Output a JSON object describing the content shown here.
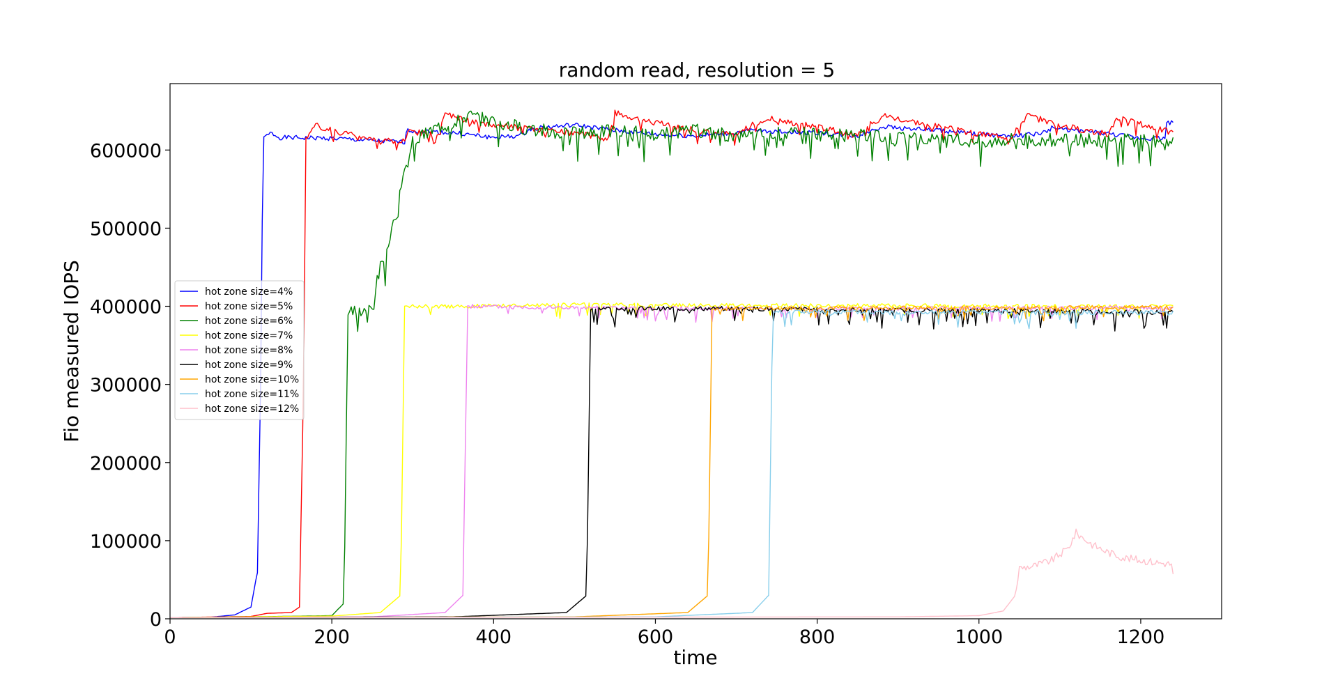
{
  "chart_data": {
    "type": "line",
    "title": "random read, resolution = 5",
    "xlabel": "time",
    "ylabel": "Fio measured IOPS",
    "xlim": [
      0,
      1300
    ],
    "ylim": [
      0,
      685000
    ],
    "x_ticks": [
      0,
      200,
      400,
      600,
      800,
      1000,
      1200
    ],
    "y_ticks": [
      0,
      100000,
      200000,
      300000,
      400000,
      500000,
      600000
    ],
    "x_tick_labels": [
      "0",
      "200",
      "400",
      "600",
      "800",
      "1000",
      "1200"
    ],
    "y_tick_labels": [
      "0",
      "100000",
      "200000",
      "300000",
      "400000",
      "500000",
      "600000"
    ],
    "grid": false,
    "legend_position": "center-left",
    "series": [
      {
        "name": "hot zone size=4%",
        "color": "#0000ff",
        "points": [
          [
            0,
            1500
          ],
          [
            50,
            2000
          ],
          [
            80,
            5000
          ],
          [
            100,
            15000
          ],
          [
            108,
            60000
          ],
          [
            112,
            300000
          ],
          [
            115,
            615000
          ],
          [
            125,
            622000
          ],
          [
            135,
            616000
          ],
          [
            200,
            615000
          ],
          [
            250,
            612000
          ],
          [
            290,
            610000
          ],
          [
            292,
            625000
          ],
          [
            350,
            622000
          ],
          [
            400,
            616000
          ],
          [
            430,
            618000
          ],
          [
            450,
            628000
          ],
          [
            500,
            632000
          ],
          [
            550,
            625000
          ],
          [
            600,
            620000
          ],
          [
            650,
            618000
          ],
          [
            700,
            622000
          ],
          [
            720,
            625000
          ],
          [
            800,
            622000
          ],
          [
            850,
            618000
          ],
          [
            880,
            630000
          ],
          [
            950,
            625000
          ],
          [
            1000,
            620000
          ],
          [
            1050,
            618000
          ],
          [
            1080,
            622000
          ],
          [
            1090,
            628000
          ],
          [
            1150,
            622000
          ],
          [
            1200,
            615000
          ],
          [
            1230,
            615000
          ],
          [
            1232,
            635000
          ],
          [
            1240,
            635000
          ]
        ],
        "noise": 3000,
        "seed": 1
      },
      {
        "name": "hot zone size=5%",
        "color": "#ff0000",
        "points": [
          [
            0,
            1500
          ],
          [
            100,
            3000
          ],
          [
            120,
            7000
          ],
          [
            150,
            8000
          ],
          [
            160,
            15000
          ],
          [
            165,
            300000
          ],
          [
            168,
            615000
          ],
          [
            180,
            632000
          ],
          [
            200,
            625000
          ],
          [
            250,
            615000
          ],
          [
            290,
            610000
          ],
          [
            295,
            625000
          ],
          [
            330,
            618000
          ],
          [
            340,
            645000
          ],
          [
            380,
            635000
          ],
          [
            420,
            630000
          ],
          [
            460,
            625000
          ],
          [
            500,
            622000
          ],
          [
            540,
            615000
          ],
          [
            550,
            648000
          ],
          [
            600,
            635000
          ],
          [
            650,
            625000
          ],
          [
            700,
            620000
          ],
          [
            720,
            632000
          ],
          [
            740,
            640000
          ],
          [
            800,
            630000
          ],
          [
            850,
            618000
          ],
          [
            880,
            645000
          ],
          [
            950,
            630000
          ],
          [
            1000,
            620000
          ],
          [
            1040,
            618000
          ],
          [
            1060,
            645000
          ],
          [
            1100,
            632000
          ],
          [
            1160,
            620000
          ],
          [
            1170,
            642000
          ],
          [
            1240,
            622000
          ]
        ],
        "noise": 4000,
        "dips": 9000,
        "seed": 2
      },
      {
        "name": "hot zone size=6%",
        "color": "#008000",
        "points": [
          [
            0,
            1500
          ],
          [
            100,
            2500
          ],
          [
            200,
            4000
          ],
          [
            215,
            20000
          ],
          [
            220,
            390000
          ],
          [
            240,
            395000
          ],
          [
            250,
            405000
          ],
          [
            260,
            450000
          ],
          [
            270,
            475000
          ],
          [
            280,
            520000
          ],
          [
            290,
            570000
          ],
          [
            300,
            610000
          ],
          [
            330,
            630000
          ],
          [
            370,
            645000
          ],
          [
            420,
            632000
          ],
          [
            480,
            622000
          ],
          [
            550,
            625000
          ],
          [
            600,
            620000
          ],
          [
            650,
            625000
          ],
          [
            700,
            618000
          ],
          [
            750,
            622000
          ],
          [
            800,
            620000
          ],
          [
            850,
            618000
          ],
          [
            900,
            615000
          ],
          [
            950,
            612000
          ],
          [
            1000,
            612000
          ],
          [
            1050,
            615000
          ],
          [
            1100,
            612000
          ],
          [
            1150,
            612000
          ],
          [
            1200,
            612000
          ],
          [
            1240,
            608000
          ]
        ],
        "noise": 9000,
        "dips": 20000,
        "seed": 3
      },
      {
        "name": "hot zone size=7%",
        "color": "#ffff00",
        "points": [
          [
            0,
            1500
          ],
          [
            200,
            3500
          ],
          [
            260,
            8000
          ],
          [
            285,
            30000
          ],
          [
            290,
            400000
          ],
          [
            350,
            400000
          ],
          [
            500,
            402000
          ],
          [
            700,
            401000
          ],
          [
            900,
            401000
          ],
          [
            1100,
            400000
          ],
          [
            1240,
            400000
          ]
        ],
        "noise": 2500,
        "dips": 10000,
        "seed": 4
      },
      {
        "name": "hot zone size=8%",
        "color": "#ee82ee",
        "points": [
          [
            0,
            1500
          ],
          [
            250,
            2500
          ],
          [
            340,
            8000
          ],
          [
            362,
            30000
          ],
          [
            368,
            400000
          ],
          [
            500,
            398000
          ],
          [
            700,
            397000
          ],
          [
            900,
            397000
          ],
          [
            1100,
            398000
          ],
          [
            1240,
            398000
          ]
        ],
        "noise": 2500,
        "dips": 10000,
        "seed": 5
      },
      {
        "name": "hot zone size=9%",
        "color": "#000000",
        "points": [
          [
            0,
            1500
          ],
          [
            350,
            2500
          ],
          [
            490,
            8000
          ],
          [
            515,
            30000
          ],
          [
            520,
            397000
          ],
          [
            700,
            397000
          ],
          [
            900,
            395000
          ],
          [
            1100,
            394000
          ],
          [
            1240,
            392000
          ]
        ],
        "noise": 3000,
        "dips": 14000,
        "seed": 6
      },
      {
        "name": "hot zone size=10%",
        "color": "#ffa500",
        "points": [
          [
            0,
            1500
          ],
          [
            500,
            2500
          ],
          [
            640,
            8000
          ],
          [
            665,
            30000
          ],
          [
            670,
            397000
          ],
          [
            800,
            398000
          ],
          [
            1000,
            398000
          ],
          [
            1240,
            399000
          ]
        ],
        "noise": 2500,
        "dips": 10000,
        "seed": 7
      },
      {
        "name": "hot zone size=11%",
        "color": "#87ceeb",
        "points": [
          [
            0,
            1500
          ],
          [
            600,
            2500
          ],
          [
            720,
            8000
          ],
          [
            740,
            30000
          ],
          [
            745,
            393000
          ],
          [
            900,
            392000
          ],
          [
            1100,
            392000
          ],
          [
            1240,
            392000
          ]
        ],
        "noise": 3000,
        "dips": 14000,
        "seed": 8
      },
      {
        "name": "hot zone size=12%",
        "color": "#ffc0cb",
        "points": [
          [
            0,
            1500
          ],
          [
            900,
            2500
          ],
          [
            1000,
            4000
          ],
          [
            1030,
            10000
          ],
          [
            1045,
            30000
          ],
          [
            1050,
            65000
          ],
          [
            1070,
            68000
          ],
          [
            1090,
            75000
          ],
          [
            1110,
            90000
          ],
          [
            1120,
            110000
          ],
          [
            1140,
            95000
          ],
          [
            1160,
            85000
          ],
          [
            1180,
            78000
          ],
          [
            1200,
            75000
          ],
          [
            1220,
            72000
          ],
          [
            1238,
            70000
          ],
          [
            1240,
            55000
          ]
        ],
        "noise": 5000,
        "seed": 9
      }
    ]
  }
}
